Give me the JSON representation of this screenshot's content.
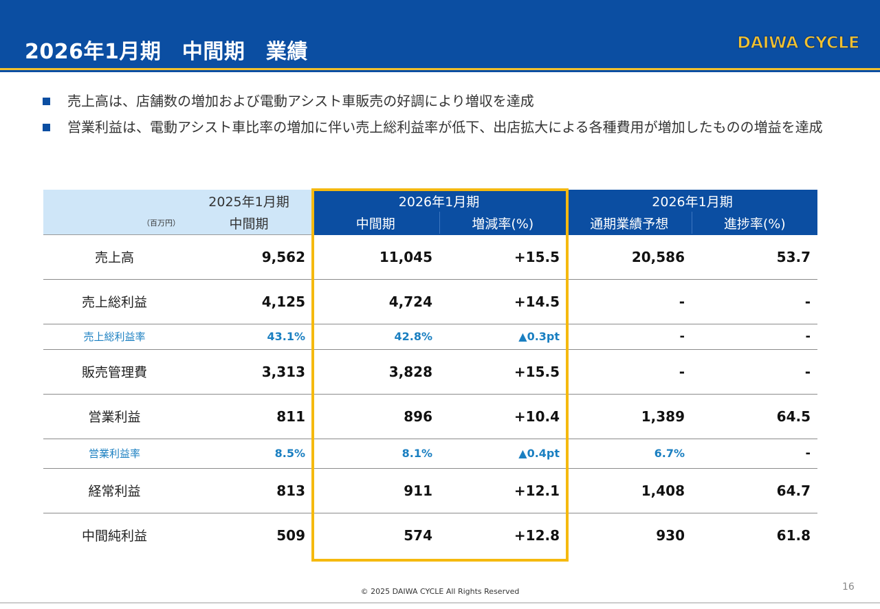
{
  "header": {
    "title": "2026年1月期　中間期　業績"
  },
  "logo": {
    "text": "DAIWA CYCLE",
    "fill": "#f2c12e",
    "stroke": "#0b3f8a"
  },
  "bullets": [
    "売上高は、店舗数の増加および電動アシスト車販売の好調により増収を達成",
    "営業利益は、電動アシスト車比率の増加に伴い売上総利益率が低下、出店拡大による各種費用が増加したものの増益を達成"
  ],
  "table": {
    "unit": "（百万円）",
    "period_2025": "2025年1月期",
    "period_2026_interim": "2026年1月期",
    "period_2026_full": "2026年1月期",
    "columns": {
      "interim_2025": "中間期",
      "interim_2026": "中間期",
      "change": "増減率(%)",
      "forecast": "通期業績予想",
      "progress": "進捗率(%)"
    },
    "rows": [
      {
        "label": "売上高",
        "values": [
          "9,562",
          "11,045",
          "+15.5",
          "20,586",
          "53.7"
        ]
      },
      {
        "label": "売上総利益",
        "values": [
          "4,125",
          "4,724",
          "+14.5",
          "-",
          "-"
        ]
      },
      {
        "label": "売上総利益率",
        "values": [
          "43.1%",
          "42.8%",
          "▲0.3pt",
          "-",
          "-"
        ]
      },
      {
        "label": "販売管理費",
        "values": [
          "3,313",
          "3,828",
          "+15.5",
          "-",
          "-"
        ]
      },
      {
        "label": "営業利益",
        "values": [
          "811",
          "896",
          "+10.4",
          "1,389",
          "64.5"
        ]
      },
      {
        "label": "営業利益率",
        "values": [
          "8.5%",
          "8.1%",
          "▲0.4pt",
          "6.7%",
          "-"
        ]
      },
      {
        "label": "経常利益",
        "values": [
          "813",
          "911",
          "+12.1",
          "1,408",
          "64.7"
        ]
      },
      {
        "label": "中間純利益",
        "values": [
          "509",
          "574",
          "+12.8",
          "930",
          "61.8"
        ]
      }
    ]
  },
  "footer": {
    "copyright": "© 2025 DAIWA CYCLE All Rights Reserved",
    "page_number": "16"
  },
  "colors": {
    "brand_blue": "#0b4ea2",
    "accent_yellow": "#f5b90f",
    "light_blue": "#cfe6f8",
    "ratio_text": "#1a7fc1"
  }
}
